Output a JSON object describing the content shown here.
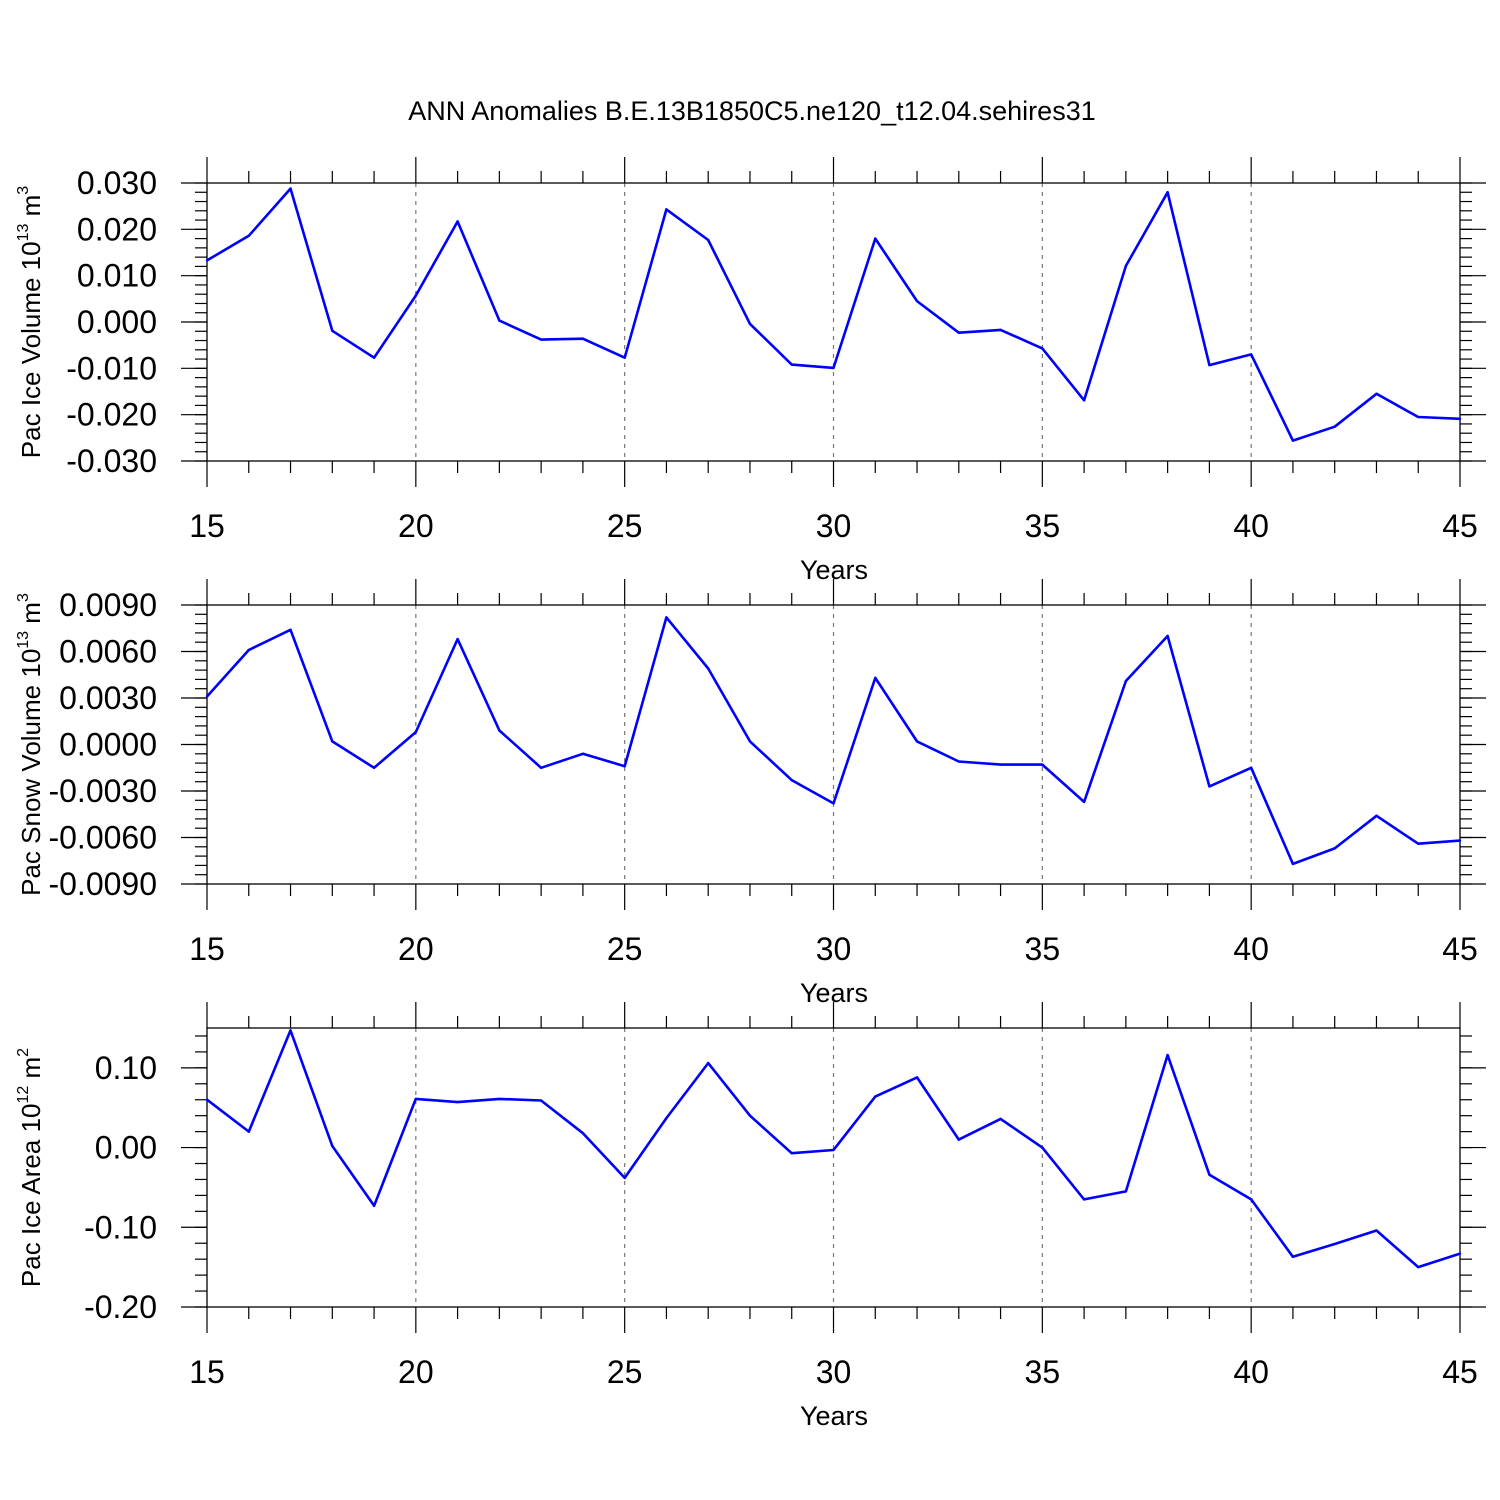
{
  "chart_data": {
    "title": "ANN Anomalies B.E.13B1850C5.ne120_t12.04.sehires31",
    "panels": [
      {
        "type": "line",
        "ylabel": {
          "text": "Pac Ice Volume 10",
          "exp": "13",
          "unit": " m",
          "unit_exp": "3"
        },
        "xlabel": "Years",
        "xlim": [
          15,
          45
        ],
        "ylim": [
          -0.03,
          0.03
        ],
        "xticks": [
          "15",
          "20",
          "25",
          "30",
          "35",
          "40",
          "45"
        ],
        "yticks": [
          "0.030",
          "0.020",
          "0.010",
          "0.000",
          "-0.010",
          "-0.020",
          "-0.030"
        ],
        "color": "#0000ff",
        "x": [
          15,
          16,
          17,
          18,
          19,
          20,
          21,
          22,
          23,
          24,
          25,
          26,
          27,
          28,
          29,
          30,
          31,
          32,
          33,
          34,
          35,
          36,
          37,
          38,
          39,
          40,
          41,
          42,
          43,
          44,
          45
        ],
        "values": [
          0.0133,
          0.0186,
          0.0288,
          -0.0019,
          -0.0077,
          0.0057,
          0.0217,
          0.0003,
          -0.0038,
          -0.0036,
          -0.0077,
          0.0243,
          0.0177,
          -0.0004,
          -0.0092,
          -0.0099,
          0.018,
          0.0045,
          -0.0023,
          -0.0017,
          -0.0057,
          -0.0169,
          0.0121,
          0.028,
          -0.0093,
          -0.007,
          -0.0256,
          -0.0226,
          -0.0155,
          -0.0205,
          -0.0209
        ]
      },
      {
        "type": "line",
        "ylabel": {
          "text": "Pac Snow Volume 10",
          "exp": "13",
          "unit": " m",
          "unit_exp": "3"
        },
        "xlabel": "Years",
        "xlim": [
          15,
          45
        ],
        "ylim": [
          -0.009,
          0.009
        ],
        "xticks": [
          "15",
          "20",
          "25",
          "30",
          "35",
          "40",
          "45"
        ],
        "yticks": [
          "0.0090",
          "0.0060",
          "0.0030",
          "0.0000",
          "-0.0030",
          "-0.0060",
          "-0.0090"
        ],
        "color": "#0000ff",
        "x": [
          15,
          16,
          17,
          18,
          19,
          20,
          21,
          22,
          23,
          24,
          25,
          26,
          27,
          28,
          29,
          30,
          31,
          32,
          33,
          34,
          35,
          36,
          37,
          38,
          39,
          40,
          41,
          42,
          43,
          44,
          45
        ],
        "values": [
          0.0031,
          0.0061,
          0.0074,
          0.0002,
          -0.0015,
          0.0008,
          0.0068,
          0.0009,
          -0.0015,
          -0.0006,
          -0.0014,
          0.0082,
          0.0049,
          0.0002,
          -0.0023,
          -0.0038,
          0.0043,
          0.0002,
          -0.0011,
          -0.0013,
          -0.0013,
          -0.0037,
          0.0041,
          0.007,
          -0.0027,
          -0.0015,
          -0.0077,
          -0.0067,
          -0.0046,
          -0.0064,
          -0.0062
        ]
      },
      {
        "type": "line",
        "ylabel": {
          "text": "Pac Ice Area 10",
          "exp": "12",
          "unit": " m",
          "unit_exp": "2"
        },
        "xlabel": "Years",
        "xlim": [
          15,
          45
        ],
        "ylim": [
          -0.2,
          0.15
        ],
        "ytick_values": [
          0.1,
          0.0,
          -0.1,
          -0.2
        ],
        "xticks": [
          "15",
          "20",
          "25",
          "30",
          "35",
          "40",
          "45"
        ],
        "yticks": [
          "0.10",
          "0.00",
          "-0.10",
          "-0.20"
        ],
        "color": "#0000ff",
        "x": [
          15,
          16,
          17,
          18,
          19,
          20,
          21,
          22,
          23,
          24,
          25,
          26,
          27,
          28,
          29,
          30,
          31,
          32,
          33,
          34,
          35,
          36,
          37,
          38,
          39,
          40,
          41,
          42,
          43,
          44,
          45
        ],
        "values": [
          0.06,
          0.02,
          0.147,
          0.002,
          -0.073,
          0.061,
          0.057,
          0.061,
          0.059,
          0.018,
          -0.038,
          0.037,
          0.106,
          0.04,
          -0.007,
          -0.003,
          0.064,
          0.088,
          0.01,
          0.036,
          0.0,
          -0.065,
          -0.055,
          0.116,
          -0.034,
          -0.065,
          -0.137,
          -0.121,
          -0.104,
          -0.15,
          -0.133
        ]
      }
    ]
  }
}
